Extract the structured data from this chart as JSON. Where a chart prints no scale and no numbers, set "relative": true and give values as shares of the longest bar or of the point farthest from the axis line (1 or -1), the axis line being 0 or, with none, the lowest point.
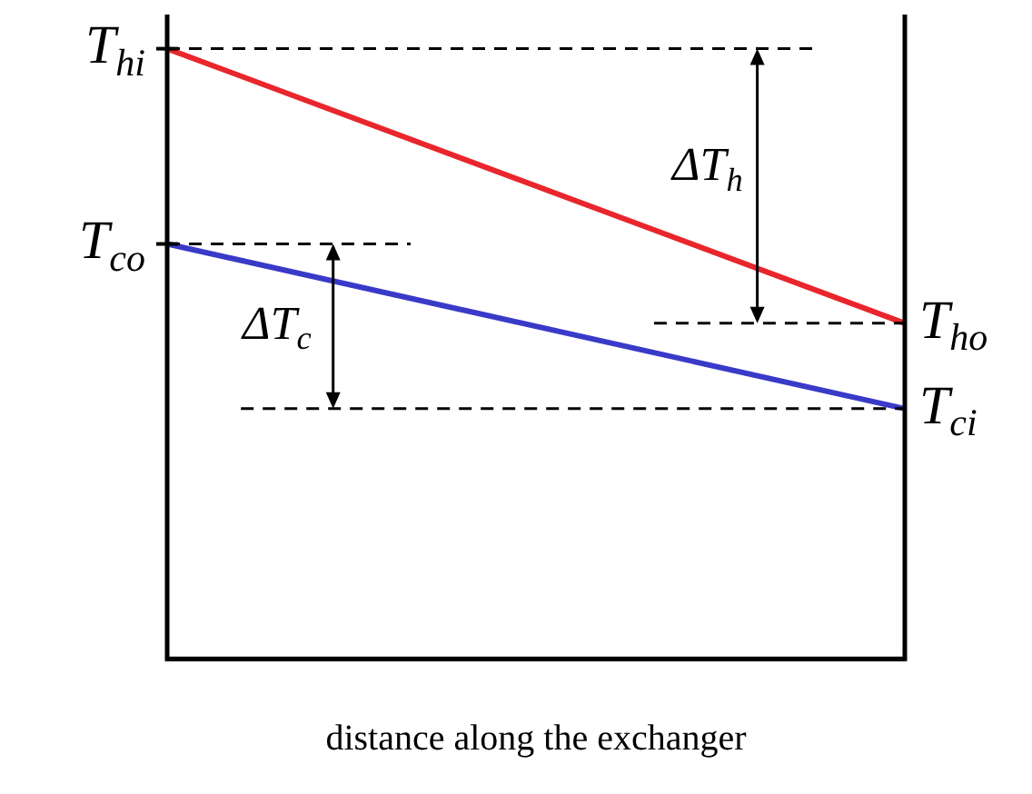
{
  "chart_data": {
    "type": "line",
    "relative": true,
    "xlabel": "distance along the exchanger",
    "categories": [
      null,
      null
    ],
    "series": [
      {
        "color": "#e8262b",
        "values": [
          1,
          0.55
        ]
      },
      {
        "color": "#3a3ac8",
        "values": [
          0.68,
          0.41
        ]
      }
    ],
    "ref_lines": [
      {
        "axis": "y",
        "value": 1,
        "label": "T$_{hi}$",
        "line_style": "dashed"
      },
      {
        "axis": "y",
        "value": 0.68,
        "label": "T$_{co}$",
        "line_style": "dashed"
      },
      {
        "axis": "y",
        "value": 0.55,
        "label": "T$_{ho}$",
        "line_style": "dashed"
      },
      {
        "axis": "y",
        "value": 0.41,
        "label": "T$_{ci}$",
        "line_style": "dashed"
      }
    ],
    "annotations": [
      "ΔT$_{h}$",
      "ΔT$_{c}$"
    ],
    "legend": false,
    "marker": "none",
    "line_style": "solid"
  }
}
